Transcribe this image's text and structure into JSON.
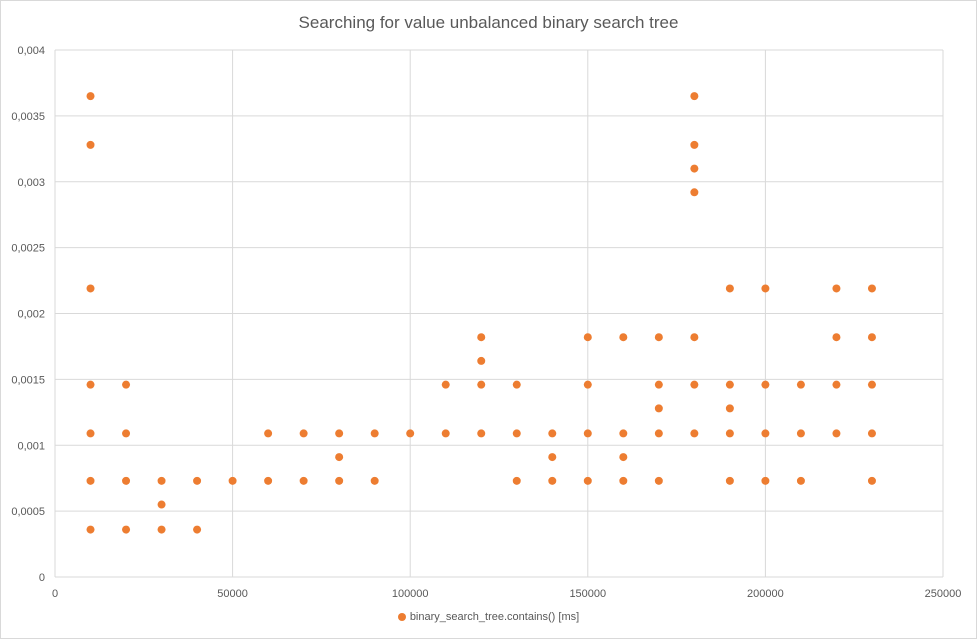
{
  "chart_data": {
    "type": "scatter",
    "title": "Searching for value unbalanced binary search tree",
    "xlabel": "",
    "ylabel": "",
    "xlim": [
      0,
      250000
    ],
    "ylim": [
      0,
      0.004
    ],
    "x_ticks": [
      0,
      50000,
      100000,
      150000,
      200000,
      250000
    ],
    "x_tick_labels": [
      "0",
      "50000",
      "100000",
      "150000",
      "200000",
      "250000"
    ],
    "y_ticks": [
      0,
      0.0005,
      0.001,
      0.0015,
      0.002,
      0.0025,
      0.003,
      0.0035,
      0.004
    ],
    "y_tick_labels": [
      "0",
      "0,0005",
      "0,001",
      "0,0015",
      "0,002",
      "0,0025",
      "0,003",
      "0,0035",
      "0,004"
    ],
    "grid": true,
    "legend_position": "bottom",
    "series": [
      {
        "name": "binary_search_tree.contains() [ms]",
        "color": "#ED7D31",
        "points": [
          [
            10000,
            0.00365
          ],
          [
            10000,
            0.00328
          ],
          [
            10000,
            0.00219
          ],
          [
            10000,
            0.00146
          ],
          [
            10000,
            0.00109
          ],
          [
            10000,
            0.00073
          ],
          [
            10000,
            0.00036
          ],
          [
            20000,
            0.00146
          ],
          [
            20000,
            0.00109
          ],
          [
            20000,
            0.00073
          ],
          [
            20000,
            0.00036
          ],
          [
            30000,
            0.00073
          ],
          [
            30000,
            0.00055
          ],
          [
            30000,
            0.00036
          ],
          [
            40000,
            0.00073
          ],
          [
            40000,
            0.00036
          ],
          [
            50000,
            0.00073
          ],
          [
            60000,
            0.00109
          ],
          [
            60000,
            0.00073
          ],
          [
            70000,
            0.00109
          ],
          [
            70000,
            0.00073
          ],
          [
            80000,
            0.00109
          ],
          [
            80000,
            0.00091
          ],
          [
            80000,
            0.00073
          ],
          [
            90000,
            0.00109
          ],
          [
            90000,
            0.00073
          ],
          [
            100000,
            0.00109
          ],
          [
            110000,
            0.00146
          ],
          [
            110000,
            0.00109
          ],
          [
            120000,
            0.00182
          ],
          [
            120000,
            0.00164
          ],
          [
            120000,
            0.00146
          ],
          [
            120000,
            0.00109
          ],
          [
            130000,
            0.00146
          ],
          [
            130000,
            0.00109
          ],
          [
            130000,
            0.00073
          ],
          [
            140000,
            0.00109
          ],
          [
            140000,
            0.00091
          ],
          [
            140000,
            0.00073
          ],
          [
            150000,
            0.00182
          ],
          [
            150000,
            0.00146
          ],
          [
            150000,
            0.00109
          ],
          [
            150000,
            0.00073
          ],
          [
            160000,
            0.00182
          ],
          [
            160000,
            0.00109
          ],
          [
            160000,
            0.00091
          ],
          [
            160000,
            0.00073
          ],
          [
            170000,
            0.00182
          ],
          [
            170000,
            0.00146
          ],
          [
            170000,
            0.00128
          ],
          [
            170000,
            0.00109
          ],
          [
            170000,
            0.00073
          ],
          [
            180000,
            0.00365
          ],
          [
            180000,
            0.00328
          ],
          [
            180000,
            0.0031
          ],
          [
            180000,
            0.00292
          ],
          [
            180000,
            0.00182
          ],
          [
            180000,
            0.00146
          ],
          [
            180000,
            0.00109
          ],
          [
            190000,
            0.00219
          ],
          [
            190000,
            0.00146
          ],
          [
            190000,
            0.00128
          ],
          [
            190000,
            0.00109
          ],
          [
            190000,
            0.00073
          ],
          [
            200000,
            0.00219
          ],
          [
            200000,
            0.00146
          ],
          [
            200000,
            0.00109
          ],
          [
            200000,
            0.00073
          ],
          [
            210000,
            0.00146
          ],
          [
            210000,
            0.00109
          ],
          [
            210000,
            0.00073
          ],
          [
            220000,
            0.00219
          ],
          [
            220000,
            0.00182
          ],
          [
            220000,
            0.00146
          ],
          [
            220000,
            0.00109
          ],
          [
            230000,
            0.00219
          ],
          [
            230000,
            0.00182
          ],
          [
            230000,
            0.00146
          ],
          [
            230000,
            0.00109
          ],
          [
            230000,
            0.00073
          ]
        ]
      }
    ]
  }
}
